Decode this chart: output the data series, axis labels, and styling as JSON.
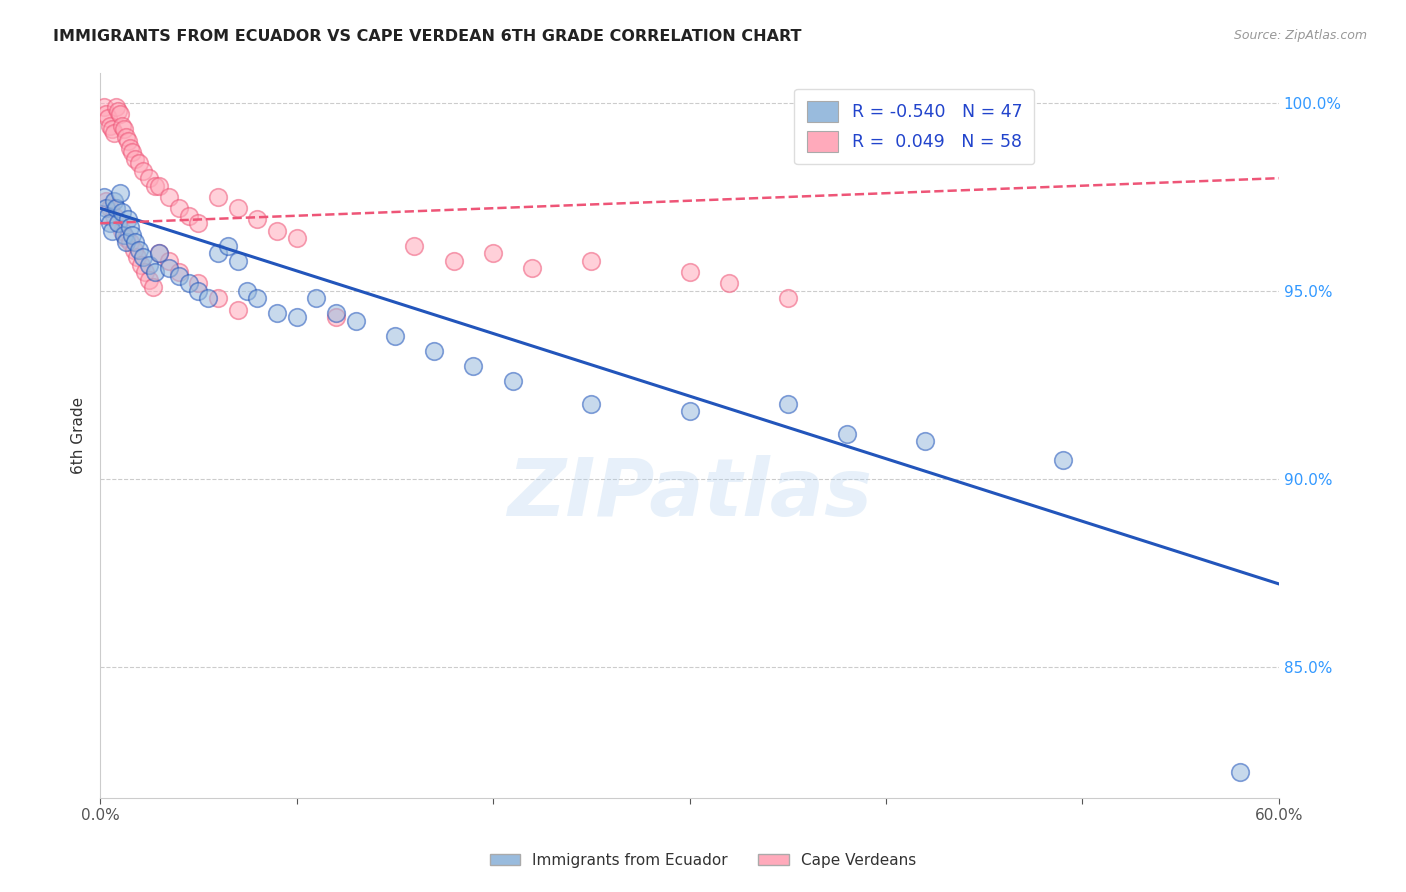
{
  "title": "IMMIGRANTS FROM ECUADOR VS CAPE VERDEAN 6TH GRADE CORRELATION CHART",
  "source": "Source: ZipAtlas.com",
  "ylabel": "6th Grade",
  "x_label_blue": "Immigrants from Ecuador",
  "x_label_pink": "Cape Verdeans",
  "legend_blue_r": "R = -0.540",
  "legend_blue_n": "N = 47",
  "legend_pink_r": "R =  0.049",
  "legend_pink_n": "N = 58",
  "xlim": [
    0.0,
    0.6
  ],
  "ylim": [
    0.815,
    1.008
  ],
  "xticks": [
    0.0,
    0.1,
    0.2,
    0.3,
    0.4,
    0.5,
    0.6
  ],
  "xticklabels": [
    "0.0%",
    "",
    "",
    "",
    "",
    "",
    "60.0%"
  ],
  "yticks_right": [
    0.85,
    0.9,
    0.95,
    1.0
  ],
  "ytick_labels_right": [
    "85.0%",
    "90.0%",
    "95.0%",
    "100.0%"
  ],
  "color_blue": "#99BBDD",
  "color_pink": "#FFAABB",
  "color_blue_line": "#2255BB",
  "color_pink_line": "#EE5577",
  "watermark": "ZIPatlas",
  "blue_scatter_x": [
    0.002,
    0.003,
    0.004,
    0.005,
    0.006,
    0.007,
    0.008,
    0.009,
    0.01,
    0.011,
    0.012,
    0.013,
    0.014,
    0.015,
    0.016,
    0.018,
    0.02,
    0.022,
    0.025,
    0.028,
    0.03,
    0.035,
    0.04,
    0.045,
    0.05,
    0.055,
    0.06,
    0.065,
    0.07,
    0.075,
    0.08,
    0.09,
    0.1,
    0.11,
    0.12,
    0.13,
    0.15,
    0.17,
    0.19,
    0.21,
    0.25,
    0.3,
    0.35,
    0.38,
    0.42,
    0.49,
    0.58
  ],
  "blue_scatter_y": [
    0.975,
    0.972,
    0.97,
    0.968,
    0.966,
    0.974,
    0.972,
    0.968,
    0.976,
    0.971,
    0.965,
    0.963,
    0.969,
    0.967,
    0.965,
    0.963,
    0.961,
    0.959,
    0.957,
    0.955,
    0.96,
    0.956,
    0.954,
    0.952,
    0.95,
    0.948,
    0.96,
    0.962,
    0.958,
    0.95,
    0.948,
    0.944,
    0.943,
    0.948,
    0.944,
    0.942,
    0.938,
    0.934,
    0.93,
    0.926,
    0.92,
    0.918,
    0.92,
    0.912,
    0.91,
    0.905,
    0.822
  ],
  "pink_scatter_x": [
    0.002,
    0.003,
    0.004,
    0.005,
    0.006,
    0.007,
    0.008,
    0.009,
    0.01,
    0.011,
    0.012,
    0.013,
    0.014,
    0.015,
    0.016,
    0.018,
    0.02,
    0.022,
    0.025,
    0.028,
    0.03,
    0.035,
    0.04,
    0.045,
    0.05,
    0.06,
    0.07,
    0.08,
    0.09,
    0.1,
    0.003,
    0.005,
    0.007,
    0.009,
    0.011,
    0.013,
    0.015,
    0.017,
    0.019,
    0.021,
    0.023,
    0.025,
    0.027,
    0.03,
    0.035,
    0.04,
    0.05,
    0.06,
    0.07,
    0.12,
    0.16,
    0.18,
    0.2,
    0.22,
    0.25,
    0.3,
    0.32,
    0.35
  ],
  "pink_scatter_y": [
    0.999,
    0.997,
    0.996,
    0.994,
    0.993,
    0.992,
    0.999,
    0.998,
    0.997,
    0.994,
    0.993,
    0.991,
    0.99,
    0.988,
    0.987,
    0.985,
    0.984,
    0.982,
    0.98,
    0.978,
    0.978,
    0.975,
    0.972,
    0.97,
    0.968,
    0.975,
    0.972,
    0.969,
    0.966,
    0.964,
    0.974,
    0.972,
    0.97,
    0.968,
    0.966,
    0.964,
    0.963,
    0.961,
    0.959,
    0.957,
    0.955,
    0.953,
    0.951,
    0.96,
    0.958,
    0.955,
    0.952,
    0.948,
    0.945,
    0.943,
    0.962,
    0.958,
    0.96,
    0.956,
    0.958,
    0.955,
    0.952,
    0.948
  ],
  "blue_line_x0": 0.0,
  "blue_line_x1": 0.6,
  "blue_line_y0": 0.972,
  "blue_line_y1": 0.872,
  "pink_line_x0": 0.0,
  "pink_line_x1": 0.6,
  "pink_line_y0": 0.968,
  "pink_line_y1": 0.98
}
